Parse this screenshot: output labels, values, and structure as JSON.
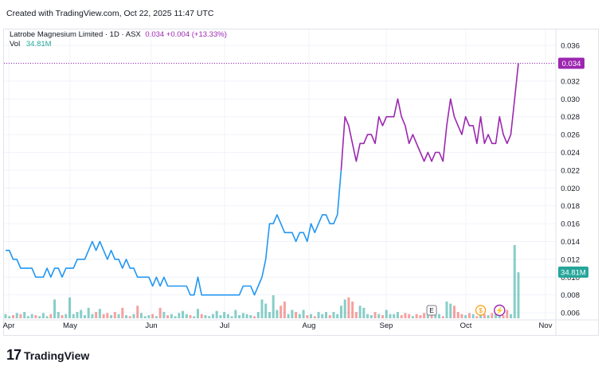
{
  "header": {
    "created_text": "Created with TradingView.com, Oct 22, 2025 11:47 UTC"
  },
  "legend": {
    "symbol_text": "Latrobe Magnesium Limited · 1D · ASX",
    "price_text": "0.034 +0.004 (+13.33%)",
    "vol_label": "Vol",
    "vol_value": "34.81M"
  },
  "footer": {
    "logo_mark": "17",
    "logo_name": "TradingView"
  },
  "colors": {
    "line_early": "#2196f3",
    "line_late": "#9c27b0",
    "vol_up": "#26a69a",
    "vol_down": "#ef5350",
    "grid": "#f0f3fa"
  },
  "chart_data": {
    "type": "line",
    "x_axis_labels": [
      "Apr",
      "May",
      "Jun",
      "Jul",
      "Aug",
      "Sep",
      "Oct",
      "Nov"
    ],
    "y_ticks": [
      "0.006",
      "0.008",
      "0.010",
      "0.012",
      "0.014",
      "0.016",
      "0.018",
      "0.020",
      "0.022",
      "0.024",
      "0.026",
      "0.028",
      "0.030",
      "0.032",
      "0.034",
      "0.036"
    ],
    "ylim": [
      0.0052,
      0.0378
    ],
    "last_price_label": "0.034",
    "last_volume_label": "34.81M",
    "price_series": [
      0.013,
      0.013,
      0.012,
      0.012,
      0.011,
      0.011,
      0.011,
      0.011,
      0.01,
      0.01,
      0.01,
      0.011,
      0.01,
      0.011,
      0.011,
      0.01,
      0.011,
      0.011,
      0.011,
      0.012,
      0.012,
      0.012,
      0.013,
      0.014,
      0.013,
      0.014,
      0.013,
      0.012,
      0.013,
      0.012,
      0.012,
      0.011,
      0.012,
      0.011,
      0.011,
      0.01,
      0.01,
      0.01,
      0.01,
      0.009,
      0.01,
      0.009,
      0.01,
      0.009,
      0.009,
      0.009,
      0.009,
      0.009,
      0.009,
      0.008,
      0.008,
      0.01,
      0.008,
      0.008,
      0.008,
      0.008,
      0.008,
      0.008,
      0.008,
      0.008,
      0.008,
      0.008,
      0.008,
      0.009,
      0.009,
      0.009,
      0.008,
      0.009,
      0.01,
      0.012,
      0.016,
      0.016,
      0.017,
      0.016,
      0.015,
      0.015,
      0.015,
      0.014,
      0.015,
      0.015,
      0.014,
      0.016,
      0.015,
      0.016,
      0.017,
      0.017,
      0.016,
      0.016,
      0.017,
      0.022,
      0.028,
      0.027,
      0.025,
      0.023,
      0.025,
      0.025,
      0.026,
      0.026,
      0.025,
      0.028,
      0.027,
      0.028,
      0.028,
      0.028,
      0.03,
      0.028,
      0.027,
      0.025,
      0.026,
      0.025,
      0.024,
      0.023,
      0.024,
      0.023,
      0.024,
      0.024,
      0.023,
      0.027,
      0.03,
      0.028,
      0.027,
      0.026,
      0.028,
      0.027,
      0.027,
      0.025,
      0.028,
      0.025,
      0.026,
      0.025,
      0.025,
      0.028,
      0.026,
      0.025,
      0.026,
      0.03,
      0.034
    ],
    "purple_from_index": 89,
    "volume_series": [
      0.2,
      0.1,
      0.15,
      0.25,
      0.2,
      0.3,
      0.1,
      0.2,
      0.15,
      0.1,
      0.25,
      0.1,
      0.2,
      0.9,
      0.3,
      0.15,
      0.2,
      1.0,
      0.2,
      0.3,
      0.4,
      0.15,
      0.5,
      0.2,
      0.3,
      0.45,
      0.2,
      0.25,
      0.15,
      0.3,
      0.2,
      0.5,
      0.15,
      0.1,
      0.2,
      0.6,
      0.25,
      0.1,
      0.15,
      0.2,
      0.1,
      0.5,
      0.3,
      0.15,
      0.2,
      0.1,
      0.25,
      0.35,
      0.2,
      0.15,
      0.1,
      0.45,
      0.2,
      0.15,
      0.1,
      0.2,
      0.35,
      0.15,
      0.3,
      0.2,
      0.1,
      0.4,
      0.15,
      0.25,
      0.2,
      0.15,
      0.1,
      0.3,
      0.9,
      0.7,
      0.3,
      1.1,
      0.4,
      0.6,
      0.8,
      0.2,
      0.4,
      0.3,
      0.2,
      0.4,
      0.15,
      0.2,
      0.1,
      0.3,
      0.2,
      0.3,
      0.15,
      0.3,
      0.2,
      0.6,
      0.9,
      1.0,
      0.8,
      0.3,
      0.6,
      0.5,
      0.2,
      0.15,
      0.3,
      0.2,
      0.15,
      0.4,
      0.2,
      0.2,
      0.3,
      0.15,
      0.25,
      0.2,
      0.1,
      0.2,
      0.15,
      0.25,
      0.2,
      0.15,
      0.3,
      0.2,
      0.1,
      0.8,
      0.7,
      0.6,
      0.3,
      0.2,
      0.15,
      0.25,
      0.2,
      0.1,
      0.3,
      0.2,
      0.15,
      0.25,
      0.3,
      0.2,
      0.15,
      0.4,
      0.2,
      3.5,
      2.2
    ],
    "volume_max_value": 3.5,
    "events": [
      {
        "type": "earnings",
        "glyph": "E",
        "index": 113
      },
      {
        "type": "dividend",
        "glyph": "$",
        "index": 126
      },
      {
        "type": "news",
        "glyph": "⚡",
        "index": 131
      }
    ]
  }
}
